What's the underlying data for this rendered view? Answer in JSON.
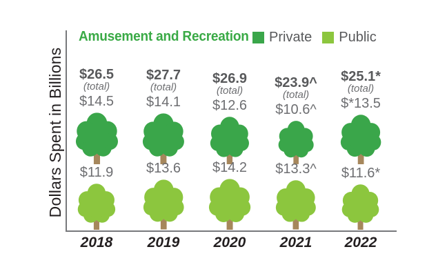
{
  "title": "Amusement and Recreation",
  "y_axis_label": "Dollars Spent in Billions",
  "legend": [
    {
      "label": "Private",
      "color": "#3AA64A"
    },
    {
      "label": "Public",
      "color": "#8CC63E"
    }
  ],
  "colors": {
    "private_green": "#3AA64A",
    "public_green": "#8CC63E",
    "trunk_brown": "#A6875C",
    "title_green": "#3AAA46",
    "total_text": "#58595B",
    "value_text": "#6D6E71",
    "year_text": "#231F20",
    "axis_gray": "#77787B"
  },
  "chart_data": {
    "type": "bar",
    "subtype": "pictogram-trees",
    "title": "Amusement and Recreation",
    "ylabel": "Dollars Spent in Billions",
    "categories": [
      "2018",
      "2019",
      "2020",
      "2021",
      "2022"
    ],
    "series": [
      {
        "name": "Private",
        "values": [
          14.5,
          14.1,
          12.6,
          10.6,
          13.5
        ],
        "display_labels": [
          "$14.5",
          "$14.1",
          "$12.6",
          "$10.6^",
          "$*13.5"
        ]
      },
      {
        "name": "Public",
        "values": [
          11.9,
          13.6,
          14.2,
          13.3,
          11.6
        ],
        "display_labels": [
          "$11.9",
          "$13.6",
          "$14.2",
          "$13.3^",
          "$11.6*"
        ]
      }
    ],
    "totals": {
      "values": [
        26.5,
        27.7,
        26.9,
        23.9,
        25.1
      ],
      "display_labels": [
        "$26.5",
        "$27.7",
        "$26.9",
        "$23.9^",
        "$25.1*"
      ],
      "sublabel": "(total)"
    },
    "legend_position": "top",
    "grid": false
  }
}
